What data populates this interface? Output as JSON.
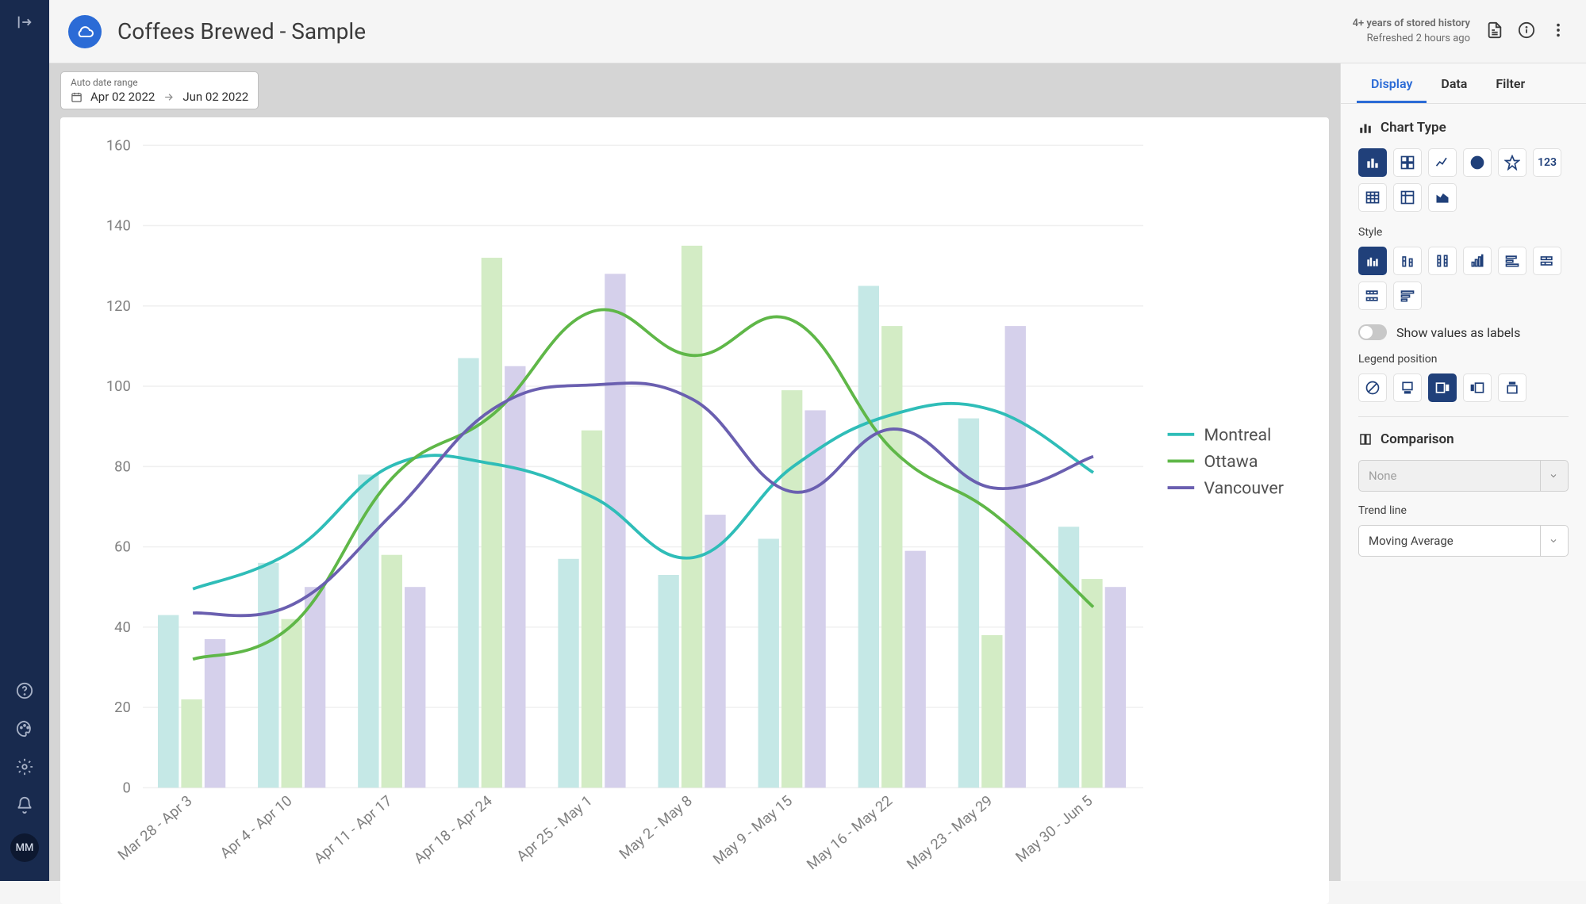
{
  "header": {
    "title": "Coffees Brewed - Sample",
    "history_line": "4+ years of stored history",
    "refresh_line": "Refreshed 2 hours ago"
  },
  "avatar": "MM",
  "date_range": {
    "label": "Auto date range",
    "from": "Apr 02 2022",
    "to": "Jun 02 2022"
  },
  "chart": {
    "type": "bar+line",
    "background": "#ffffff",
    "grid_color": "#f0f0f0",
    "axis_color": "#808080",
    "ylim": [
      0,
      160
    ],
    "ytick_step": 20,
    "yticks": [
      0,
      20,
      40,
      60,
      80,
      100,
      120,
      140,
      160
    ],
    "categories": [
      "Mar 28 - Apr 3",
      "Apr 4 - Apr 10",
      "Apr 11 - Apr 17",
      "Apr 18 - Apr 24",
      "Apr 25 - May 1",
      "May 2 - May 8",
      "May 9 - May 15",
      "May 16 - May 22",
      "May 23 - May 29",
      "May 30 - Jun 5"
    ],
    "bar_series": [
      {
        "name": "Montreal-bar",
        "color": "#c5e8e6",
        "values": [
          43,
          56,
          78,
          107,
          57,
          53,
          62,
          125,
          92,
          65
        ]
      },
      {
        "name": "Ottawa-bar",
        "color": "#d3ecc5",
        "values": [
          22,
          42,
          58,
          132,
          89,
          135,
          99,
          115,
          38,
          52
        ]
      },
      {
        "name": "Vancouver-bar",
        "color": "#d5d0eb",
        "values": [
          37,
          50,
          50,
          105,
          128,
          68,
          94,
          59,
          115,
          50
        ]
      }
    ],
    "line_series": [
      {
        "name": "Montreal",
        "color": "#2fbdb8",
        "width": 2.5
      },
      {
        "name": "Ottawa",
        "color": "#5fb748",
        "width": 2.5
      },
      {
        "name": "Vancouver",
        "color": "#6a5fb0",
        "width": 2.5
      }
    ],
    "legend": [
      {
        "label": "Montreal",
        "color": "#2fbdb8"
      },
      {
        "label": "Ottawa",
        "color": "#5fb748"
      },
      {
        "label": "Vancouver",
        "color": "#6a5fb0"
      }
    ],
    "legend_position": "right",
    "bar_group_width": 0.7,
    "label_fontsize": 12
  },
  "panel": {
    "tabs": [
      "Display",
      "Data",
      "Filter"
    ],
    "active_tab": 0,
    "chart_type_label": "Chart Type",
    "chart_type_number": "123",
    "style_label": "Style",
    "show_values_label": "Show values as labels",
    "legend_label": "Legend position",
    "comparison_label": "Comparison",
    "comparison_value": "None",
    "trendline_label": "Trend line",
    "trendline_value": "Moving Average"
  }
}
